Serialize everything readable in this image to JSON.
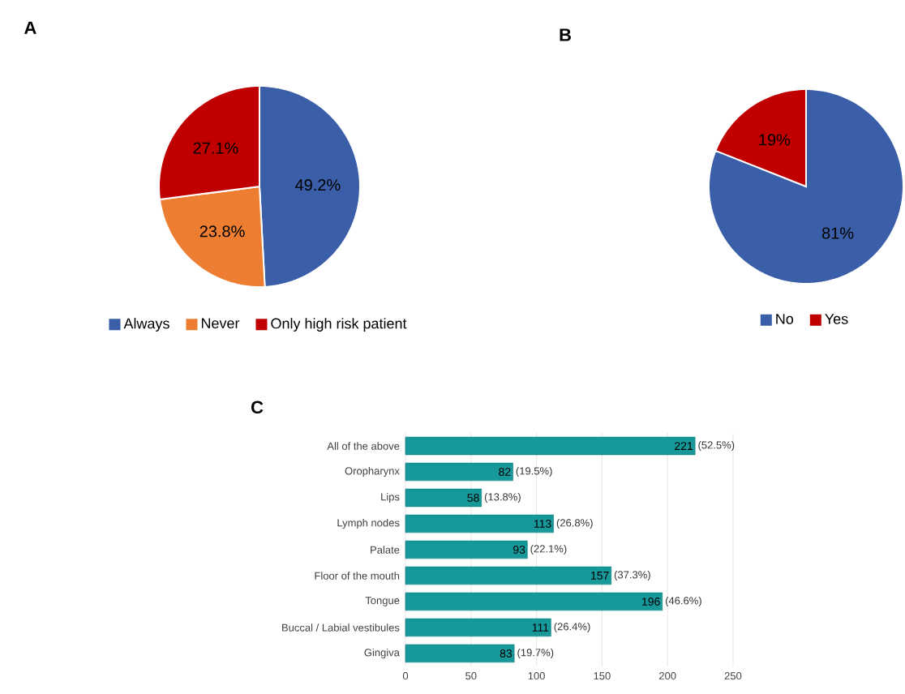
{
  "chart_data": [
    {
      "type": "pie",
      "title": "A",
      "categories": [
        "Always",
        "Never",
        "Only high risk patient"
      ],
      "values": [
        49.2,
        23.8,
        27.1
      ],
      "colors": [
        "#3a5fa8",
        "#ed7d31",
        "#c00000"
      ],
      "value_labels": [
        "49.2%",
        "23.8%",
        "27.1%"
      ],
      "legend": "bottom"
    },
    {
      "type": "pie",
      "title": "B",
      "categories": [
        "No",
        "Yes"
      ],
      "values": [
        81,
        19
      ],
      "colors": [
        "#3a5fa8",
        "#c00000"
      ],
      "value_labels": [
        "81%",
        "19%"
      ],
      "legend": "bottom"
    },
    {
      "type": "bar",
      "orientation": "horizontal",
      "title": "C",
      "categories": [
        "All of the above",
        "Oropharynx",
        "Lips",
        "Lymph nodes",
        "Palate",
        "Floor of the mouth",
        "Tongue",
        "Buccal / Labial vestibules",
        "Gingiva"
      ],
      "values": [
        221,
        82,
        58,
        113,
        93,
        157,
        196,
        111,
        83
      ],
      "color": "#17989a",
      "xlim": [
        0,
        250
      ],
      "xticks": [
        0,
        50,
        100,
        150,
        200,
        250
      ],
      "grid": "x",
      "data_labels": true,
      "annotations": [
        {
          "text": "(52.5%)",
          "x": 221,
          "y": "All of the above"
        },
        {
          "text": "(19.5%)",
          "x": 82,
          "y": "Oropharynx"
        },
        {
          "text": "(13.8%)",
          "x": 58,
          "y": "Lips"
        },
        {
          "text": "(26.8%)",
          "x": 113,
          "y": "Lymph nodes"
        },
        {
          "text": "(22.1%)",
          "x": 93,
          "y": "Palate"
        },
        {
          "text": "(37.3%)",
          "x": 157,
          "y": "Floor of the mouth"
        },
        {
          "text": "(46.6%)",
          "x": 196,
          "y": "Tongue"
        },
        {
          "text": "(26.4%)",
          "x": 111,
          "y": "Buccal / Labial vestibules"
        },
        {
          "text": "(19.7%)",
          "x": 83,
          "y": "Gingiva"
        }
      ]
    }
  ]
}
